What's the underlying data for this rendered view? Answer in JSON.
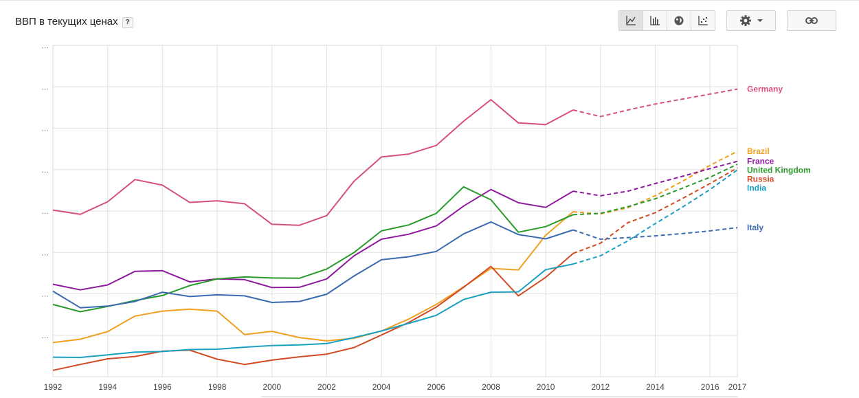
{
  "header": {
    "title": "ВВП в текущих ценах",
    "help_label": "?"
  },
  "toolbar": {
    "view_buttons": [
      {
        "name": "line-chart-icon",
        "active": true
      },
      {
        "name": "bar-chart-icon",
        "active": false
      },
      {
        "name": "globe-icon",
        "active": false
      },
      {
        "name": "scatter-chart-icon",
        "active": false
      }
    ],
    "settings_icon": "gear-icon",
    "dropdown_icon": "caret-down-icon",
    "link_icon": "link-icon"
  },
  "chart_data": {
    "type": "line",
    "title": "ВВП в текущих ценах",
    "x": [
      1992,
      1993,
      1994,
      1995,
      1996,
      1997,
      1998,
      1999,
      2000,
      2001,
      2002,
      2003,
      2004,
      2005,
      2006,
      2007,
      2008,
      2009,
      2010,
      2011,
      2012,
      2013,
      2014,
      2015,
      2016,
      2017
    ],
    "x_tick_labels": [
      "1992",
      "1994",
      "1996",
      "1998",
      "2000",
      "2002",
      "2004",
      "2006",
      "2008",
      "2010",
      "2012",
      "2014",
      "2016",
      "2017"
    ],
    "x_tick_values": [
      1992,
      1994,
      1996,
      1998,
      2000,
      2002,
      2004,
      2006,
      2008,
      2010,
      2012,
      2014,
      2016,
      2017
    ],
    "y_tick_labels": [
      "…",
      "…",
      "…",
      "…",
      "…",
      "…",
      "…",
      "…"
    ],
    "ylim": [
      0,
      100
    ],
    "grid": true,
    "forecast_start": {
      "default": 2011,
      "Italy": 2011
    },
    "legend_position": "right, at line ends",
    "series": [
      {
        "name": "Germany",
        "color": "#d6507a",
        "values": [
          50.3,
          49.0,
          52.8,
          59.5,
          57.8,
          52.6,
          53.1,
          52.2,
          46.0,
          45.7,
          48.6,
          59.0,
          66.3,
          67.2,
          69.8,
          77.1,
          83.6,
          76.6,
          76.1,
          80.5,
          78.5,
          80.5,
          82.3,
          83.8,
          85.3,
          86.8
        ]
      },
      {
        "name": "Brazil",
        "color": "#f0a020",
        "values": [
          10.3,
          11.3,
          13.6,
          18.3,
          19.8,
          20.4,
          19.8,
          12.7,
          13.7,
          11.8,
          10.8,
          11.6,
          13.8,
          17.4,
          21.8,
          27.1,
          32.7,
          32.2,
          42.7,
          49.8,
          49.1,
          51.0,
          54.6,
          59.0,
          63.8,
          68.0
        ]
      },
      {
        "name": "France",
        "color": "#8e1a9e",
        "values": [
          27.9,
          26.2,
          27.7,
          31.8,
          32.0,
          28.6,
          29.5,
          29.3,
          26.9,
          27.0,
          29.5,
          36.5,
          41.5,
          43.0,
          45.5,
          51.5,
          56.5,
          52.5,
          51.1,
          56.0,
          54.6,
          56.0,
          58.3,
          60.5,
          62.8,
          65.0
        ]
      },
      {
        "name": "United Kingdom",
        "color": "#2a9a2a",
        "values": [
          21.8,
          19.6,
          21.2,
          23.0,
          24.5,
          27.5,
          29.5,
          30.1,
          29.8,
          29.7,
          32.5,
          37.5,
          44.0,
          45.8,
          49.3,
          57.3,
          53.4,
          43.6,
          45.3,
          48.9,
          49.3,
          51.3,
          53.7,
          56.9,
          60.2,
          64.1
        ]
      },
      {
        "name": "Russia",
        "color": "#d24a24",
        "values": [
          1.9,
          3.7,
          5.4,
          6.1,
          7.7,
          8.0,
          5.3,
          3.7,
          5.0,
          6.0,
          6.8,
          8.8,
          12.6,
          16.4,
          21.0,
          27.0,
          33.3,
          24.4,
          30.0,
          37.2,
          40.3,
          46.5,
          49.5,
          53.8,
          58.3,
          63.0
        ]
      },
      {
        "name": "India",
        "color": "#1aa0c0",
        "values": [
          5.9,
          5.8,
          6.6,
          7.4,
          7.6,
          8.2,
          8.3,
          8.9,
          9.4,
          9.6,
          10.0,
          11.8,
          13.8,
          16.1,
          18.5,
          23.3,
          25.5,
          25.6,
          32.3,
          34.0,
          36.5,
          41.0,
          46.2,
          51.2,
          56.5,
          62.4
        ]
      },
      {
        "name": "Italy",
        "color": "#3a6ab0",
        "values": [
          25.8,
          20.8,
          21.3,
          22.7,
          25.5,
          24.2,
          24.7,
          24.4,
          22.4,
          22.7,
          24.9,
          30.4,
          35.3,
          36.2,
          37.8,
          43.1,
          46.7,
          42.9,
          41.6,
          44.3,
          41.5,
          42.0,
          42.5,
          43.2,
          44.0,
          45.0
        ]
      }
    ]
  }
}
